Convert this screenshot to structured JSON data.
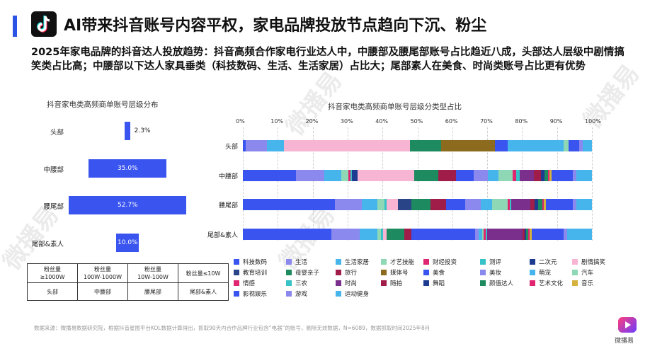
{
  "header": {
    "title": "AI带来抖音账号内容平权，家电品牌投放节点趋向下沉、粉尘",
    "subtitle": "2025年家电品牌的抖音达人投放趋势：抖音高频合作家电行业达人中，中腰部及腰尾部账号占比趋近八成，头部达人层级中剧情搞笑类占比高；中腰部以下达人家具垂类（科技数码、生活、生活家居）占比大；尾部素人在美食、时尚类账号占比更有优势",
    "logo_icon": "tiktok-icon",
    "accent_color": "#2b54e6"
  },
  "watermark": "微播易",
  "funnel": {
    "title": "抖音家电类高频商单账号层级分布",
    "categories": [
      "头部",
      "中腰部",
      "腰尾部",
      "尾部&素人"
    ],
    "values": [
      2.3,
      35.0,
      52.7,
      10.0
    ],
    "value_labels": [
      "2.3%",
      "35.0%",
      "52.7%",
      "10.0%"
    ],
    "bar_color": "#3a55ef",
    "legend_table": {
      "ranges": [
        "粉丝量\n≥1000W",
        "粉丝量\n100W-1000W",
        "粉丝量\n10W-100W",
        "粉丝量≤10W"
      ],
      "levels": [
        "头部",
        "中腰部",
        "腰尾部",
        "尾部&素人"
      ]
    }
  },
  "chart_data": [
    {
      "type": "bar",
      "orientation": "horizontal",
      "title": "抖音家电类高频商单账号层级分布",
      "categories": [
        "头部",
        "中腰部",
        "腰尾部",
        "尾部&素人"
      ],
      "values": [
        2.3,
        35.0,
        52.7,
        10.0
      ],
      "unit": "%",
      "label_color": [
        "#222222",
        "#ffffff",
        "#ffffff",
        "#ffffff"
      ]
    },
    {
      "type": "bar",
      "orientation": "horizontal",
      "stacked": true,
      "title": "抖音家电类高频商单账号层级分类型占比",
      "xlim": [
        0,
        100
      ],
      "x_ticks": [
        "0%",
        "10%",
        "20%",
        "30%",
        "40%",
        "50%",
        "60%",
        "70%",
        "80%",
        "90%",
        "100%"
      ],
      "categories": [
        "头部",
        "中腰部",
        "腰尾部",
        "尾部&素人"
      ],
      "grid": true,
      "legend_position": "bottom",
      "series": [
        {
          "name": "科技数码",
          "color": "#3a55ef",
          "values": [
            0.8,
            15,
            24,
            25
          ]
        },
        {
          "name": "生活",
          "color": "#8b89ee",
          "values": [
            6,
            8,
            7,
            8
          ]
        },
        {
          "name": "生活家居",
          "color": "#45b5ec",
          "values": [
            5,
            5,
            4,
            5
          ]
        },
        {
          "name": "才艺技能",
          "color": "#8fd8b6",
          "values": [
            0,
            2,
            2,
            1
          ]
        },
        {
          "name": "财经投资",
          "color": "#e02670",
          "values": [
            0,
            0.5,
            0,
            0
          ]
        },
        {
          "name": "测评",
          "color": "#36c2c6",
          "values": [
            0,
            0.5,
            0.5,
            0.5
          ]
        },
        {
          "name": "二次元",
          "color": "#1d3b8f",
          "values": [
            0,
            1.5,
            0,
            0
          ]
        },
        {
          "name": "剧情搞笑",
          "color": "#f7b5d3",
          "values": [
            36,
            16,
            3,
            1
          ]
        },
        {
          "name": "教育培训",
          "color": "#2a4488",
          "values": [
            0,
            0,
            3.5,
            0
          ]
        },
        {
          "name": "母婴亲子",
          "color": "#1d8a5f",
          "values": [
            9,
            7,
            5,
            5
          ]
        },
        {
          "name": "旅行",
          "color": "#a01d4a",
          "values": [
            0,
            5,
            4,
            2
          ]
        },
        {
          "name": "媒体号",
          "color": "#8c6a1e",
          "values": [
            15.5,
            0,
            0,
            0
          ]
        },
        {
          "name": "美食",
          "color": "#3a55ef",
          "values": [
            3.5,
            5,
            5,
            18
          ]
        },
        {
          "name": "美妆",
          "color": "#8b89ee",
          "values": [
            0,
            4,
            4,
            1
          ]
        },
        {
          "name": "萌宠",
          "color": "#45b5ec",
          "values": [
            16,
            3,
            3,
            1
          ]
        },
        {
          "name": "汽车",
          "color": "#8fd8b6",
          "values": [
            1.5,
            4,
            4,
            0.5
          ]
        },
        {
          "name": "情感",
          "color": "#e02670",
          "values": [
            0,
            1,
            0.5,
            0.5
          ]
        },
        {
          "name": "三农",
          "color": "#36c2c6",
          "values": [
            0,
            1,
            0.5,
            0.5
          ]
        },
        {
          "name": "时尚",
          "color": "#7b2f8c",
          "values": [
            0,
            4,
            5,
            10
          ]
        },
        {
          "name": "随拍",
          "color": "#a01d4a",
          "values": [
            0,
            2,
            1,
            0.5
          ]
        },
        {
          "name": "舞蹈",
          "color": "#1d3b8f",
          "values": [
            0,
            1,
            1,
            0.5
          ]
        },
        {
          "name": "颜值达人",
          "color": "#1d8a5f",
          "values": [
            0,
            1,
            1,
            0.5
          ]
        },
        {
          "name": "艺术文化",
          "color": "#e02670",
          "values": [
            0,
            0.5,
            0.5,
            0.5
          ]
        },
        {
          "name": "音乐",
          "color": "#d4b23d",
          "values": [
            0,
            0.5,
            0.5,
            0.5
          ]
        },
        {
          "name": "影视娱乐",
          "color": "#3a55ef",
          "values": [
            3,
            6,
            7,
            9
          ]
        },
        {
          "name": "游戏",
          "color": "#8b89ee",
          "values": [
            1,
            1,
            1,
            1
          ]
        },
        {
          "name": "运动健身",
          "color": "#45b5ec",
          "values": [
            2.7,
            4.5,
            4,
            7
          ]
        }
      ]
    }
  ],
  "footer": {
    "source": "数据来源：微播易数据研究院，根据抖音星图平台KOL数据计算得出，抓取90天内合作品牌行业包含“电器”的账号，剔除无效数据，N=6089，数据抓取时间2025年8月",
    "brand_name": "微播易",
    "brand_icon": "play-logo-icon"
  }
}
